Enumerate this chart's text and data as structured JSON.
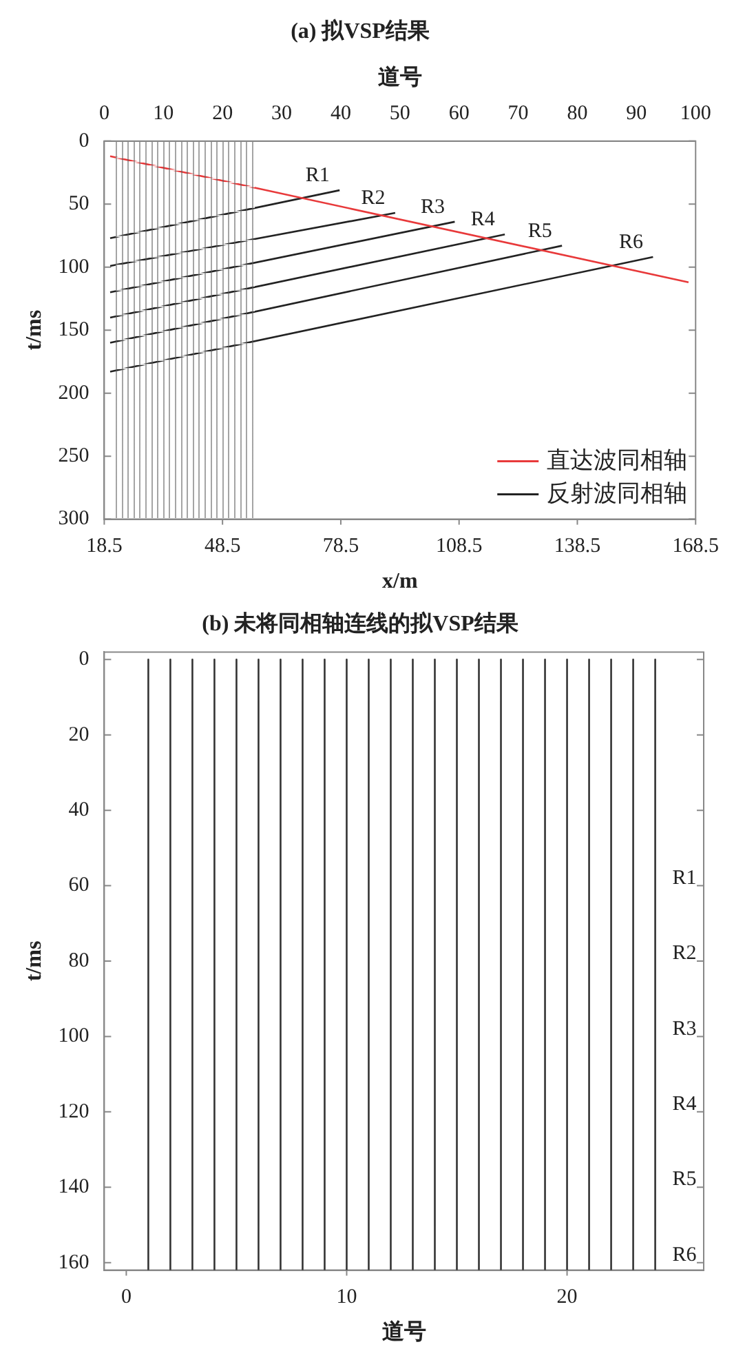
{
  "chart_data": [
    {
      "type": "line",
      "title": "(a) 拟VSP结果",
      "xlabel": "x/m",
      "x2label": "道号",
      "ylabel": "t/ms",
      "xlim": [
        18.5,
        168.5
      ],
      "xticks": [
        18.5,
        48.5,
        78.5,
        108.5,
        138.5,
        168.5
      ],
      "x2lim": [
        0,
        100
      ],
      "x2ticks": [
        0,
        10,
        20,
        30,
        40,
        50,
        60,
        70,
        80,
        90,
        100
      ],
      "ylim": [
        300,
        0
      ],
      "yticks": [
        0,
        50,
        100,
        150,
        200,
        250,
        300
      ],
      "legend": "bottom right",
      "series": [
        {
          "name": "直达波同相轴",
          "color": "#e8393a",
          "x": [
            20,
            166.7
          ],
          "values": [
            12,
            112
          ]
        },
        {
          "name": "反射波同相轴",
          "color": "#222222",
          "x": [
            20,
            78.2
          ],
          "values": [
            77,
            39
          ]
        },
        {
          "color": "#222222",
          "x": [
            20,
            92.3
          ],
          "values": [
            99,
            57
          ]
        },
        {
          "color": "#222222",
          "x": [
            20,
            107.4
          ],
          "values": [
            120,
            64
          ]
        },
        {
          "color": "#222222",
          "x": [
            20,
            120.1
          ],
          "values": [
            140,
            74
          ]
        },
        {
          "color": "#222222",
          "x": [
            20,
            134.6
          ],
          "values": [
            160,
            83
          ]
        },
        {
          "color": "#222222",
          "x": [
            20,
            157.7
          ],
          "values": [
            183,
            92
          ]
        }
      ],
      "annotations": [
        {
          "text": "R1",
          "x": 78.2,
          "y": 39
        },
        {
          "text": "R2",
          "x": 92.3,
          "y": 57
        },
        {
          "text": "R3",
          "x": 107.4,
          "y": 64
        },
        {
          "text": "R4",
          "x": 120.1,
          "y": 74
        },
        {
          "text": "R5",
          "x": 134.6,
          "y": 83
        },
        {
          "text": "R6",
          "x": 157.7,
          "y": 92
        }
      ]
    },
    {
      "type": "line",
      "title": "(b) 未将同相轴连线的拟VSP结果",
      "xlabel": "道号",
      "ylabel": "t/ms",
      "xlim": [
        -1,
        26.2
      ],
      "xticks": [
        0,
        10,
        20
      ],
      "ylim": [
        162,
        -2
      ],
      "yticks": [
        0,
        20,
        40,
        60,
        80,
        100,
        120,
        140,
        160
      ],
      "series": [
        {
          "color": "#333333",
          "x": [
            1,
            1
          ],
          "values": [
            0,
            162
          ]
        },
        {
          "color": "#333333",
          "x": [
            2,
            2
          ],
          "values": [
            0,
            162
          ]
        },
        {
          "color": "#333333",
          "x": [
            3,
            3
          ],
          "values": [
            0,
            162
          ]
        },
        {
          "color": "#333333",
          "x": [
            4,
            4
          ],
          "values": [
            0,
            162
          ]
        },
        {
          "color": "#333333",
          "x": [
            5,
            5
          ],
          "values": [
            0,
            162
          ]
        },
        {
          "color": "#333333",
          "x": [
            6,
            6
          ],
          "values": [
            0,
            162
          ]
        },
        {
          "color": "#333333",
          "x": [
            7,
            7
          ],
          "values": [
            0,
            162
          ]
        },
        {
          "color": "#333333",
          "x": [
            8,
            8
          ],
          "values": [
            0,
            162
          ]
        },
        {
          "color": "#333333",
          "x": [
            9,
            9
          ],
          "values": [
            0,
            162
          ]
        },
        {
          "color": "#333333",
          "x": [
            10,
            10
          ],
          "values": [
            0,
            162
          ]
        },
        {
          "color": "#333333",
          "x": [
            11,
            11
          ],
          "values": [
            0,
            162
          ]
        },
        {
          "color": "#333333",
          "x": [
            12,
            12
          ],
          "values": [
            0,
            162
          ]
        },
        {
          "color": "#333333",
          "x": [
            13,
            13
          ],
          "values": [
            0,
            162
          ]
        },
        {
          "color": "#333333",
          "x": [
            14,
            14
          ],
          "values": [
            0,
            162
          ]
        },
        {
          "color": "#333333",
          "x": [
            15,
            15
          ],
          "values": [
            0,
            162
          ]
        },
        {
          "color": "#333333",
          "x": [
            16,
            16
          ],
          "values": [
            0,
            162
          ]
        },
        {
          "color": "#333333",
          "x": [
            17,
            17
          ],
          "values": [
            0,
            162
          ]
        },
        {
          "color": "#333333",
          "x": [
            18,
            18
          ],
          "values": [
            0,
            162
          ]
        },
        {
          "color": "#333333",
          "x": [
            19,
            19
          ],
          "values": [
            0,
            162
          ]
        },
        {
          "color": "#333333",
          "x": [
            20,
            20
          ],
          "values": [
            0,
            162
          ]
        },
        {
          "color": "#333333",
          "x": [
            21,
            21
          ],
          "values": [
            0,
            162
          ]
        },
        {
          "color": "#333333",
          "x": [
            22,
            22
          ],
          "values": [
            0,
            162
          ]
        },
        {
          "color": "#333333",
          "x": [
            23,
            23
          ],
          "values": [
            0,
            162
          ]
        },
        {
          "color": "#333333",
          "x": [
            24,
            24
          ],
          "values": [
            0,
            162
          ]
        }
      ],
      "annotations": [
        "R1",
        "R2",
        "R3",
        "R4",
        "R5",
        "R6"
      ]
    }
  ]
}
